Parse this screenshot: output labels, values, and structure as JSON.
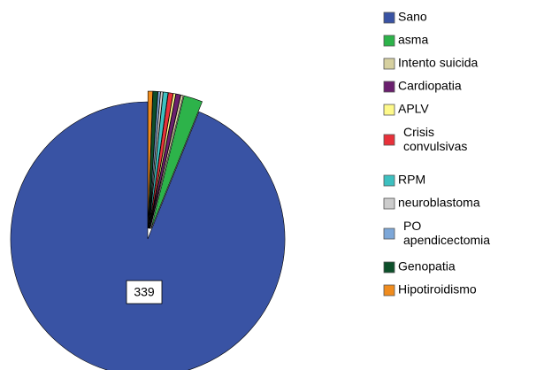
{
  "chart_data": {
    "type": "pie",
    "categories": [
      "Sano",
      "asma",
      "Intento suicida",
      "Cardiopatia",
      "APLV",
      "Crisis convulsivas",
      "RPM",
      "neuroblastoma",
      "PO apendicectomia",
      "Genopatia",
      "Hipotiroidismo"
    ],
    "values": [
      339,
      8,
      1,
      2,
      1,
      2,
      2,
      1,
      1,
      2,
      2
    ],
    "colors": [
      "#3953a4",
      "#2db34a",
      "#d6d0a0",
      "#6a1f6e",
      "#fef98a",
      "#e8313a",
      "#3dc0c0",
      "#cccccc",
      "#7da7d8",
      "#0c4f2a",
      "#f08c1e"
    ]
  }
}
